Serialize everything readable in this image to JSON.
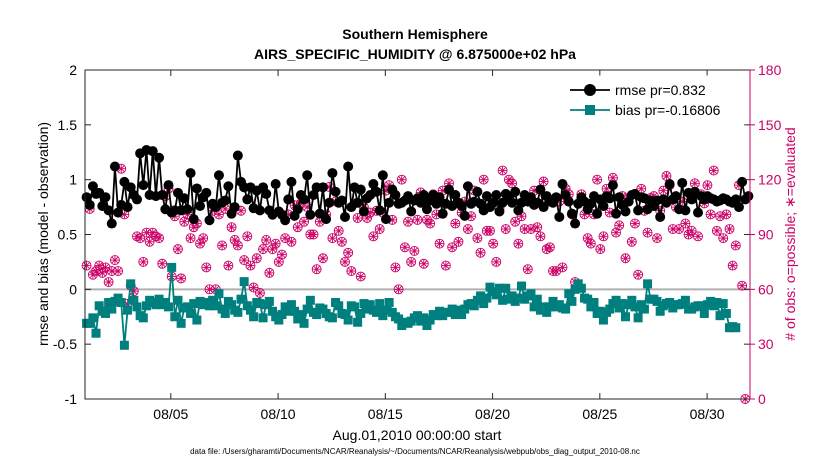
{
  "chart_data": {
    "type": "line",
    "title": "Southern Hemisphere",
    "subtitle": "AIRS_SPECIFIC_HUMIDITY @ 6.875000e+02 hPa",
    "xlabel": "Aug.01,2010 00:00:00 start",
    "ylabel": "rmse and bias (model - observation)",
    "ylabel_right": "# of obs: o=possible; ∗=evaluated",
    "x_ticks": [
      "08/05",
      "08/10",
      "08/15",
      "08/20",
      "08/25",
      "08/30"
    ],
    "x_tick_days": [
      5,
      10,
      15,
      20,
      25,
      30
    ],
    "xlim": [
      1,
      32
    ],
    "ylim": [
      -1,
      2
    ],
    "yticks": [
      -1,
      -0.5,
      0,
      0.5,
      1,
      1.5,
      2
    ],
    "ylim_right": [
      0,
      180
    ],
    "yticks_right": [
      0,
      30,
      60,
      90,
      120,
      150,
      180
    ],
    "grid": false,
    "legend_position": "top-right",
    "colors": {
      "rmse": "#000000",
      "bias": "#007f7f",
      "obs": "#cc0066",
      "zero_line": "#b0b0b0"
    },
    "series": [
      {
        "name": "rmse pr=0.832",
        "axis": "left",
        "values": [
          0.84,
          0.77,
          0.94,
          0.87,
          0.88,
          0.76,
          0.84,
          0.72,
          0.6,
          1.12,
          0.7,
          0.77,
          0.98,
          0.75,
          0.93,
          0.86,
          0.82,
          1.24,
          0.95,
          1.27,
          0.86,
          1.26,
          0.85,
          1.2,
          0.86,
          0.73,
          0.95,
          0.7,
          0.72,
          0.88,
          0.72,
          0.83,
          0.73,
          1.06,
          0.64,
          0.92,
          0.76,
          0.84,
          0.88,
          0.63,
          0.78,
          0.75,
          1.04,
          0.79,
          0.81,
          0.94,
          0.69,
          0.75,
          1.22,
          0.98,
          0.93,
          0.82,
          0.93,
          0.74,
          0.9,
          0.72,
          0.93,
          0.87,
          0.72,
          0.68,
          0.96,
          0.71,
          0.68,
          0.63,
          0.82,
          0.98,
          0.67,
          0.73,
          0.86,
          0.82,
          1.04,
          0.68,
          0.86,
          0.93,
          0.69,
          0.93,
          0.64,
          0.79,
          1.06,
          0.89,
          0.79,
          0.81,
          0.66,
          1.12,
          0.75,
          0.93,
          0.79,
          0.91,
          0.71,
          0.83,
          0.86,
          0.96,
          0.89,
          0.72,
          1.04,
          0.64,
          0.79,
          0.91,
          0.86,
          0.78,
          0.79,
          0.81,
          0.85,
          0.71,
          0.81,
          0.83,
          0.79,
          0.86,
          0.73,
          0.81,
          0.86,
          0.78,
          0.84,
          0.69,
          0.78,
          0.91,
          0.76,
          0.86,
          0.79,
          0.76,
          0.67,
          0.94,
          0.78,
          0.8,
          0.89,
          0.78,
          0.72,
          0.85,
          0.75,
          0.79,
          0.86,
          0.71,
          0.79,
          0.87,
          0.84,
          0.79,
          0.89,
          0.72,
          0.79,
          0.86,
          0.8,
          0.84,
          0.77,
          0.79,
          0.91,
          0.75,
          0.85,
          0.8,
          0.79,
          0.84,
          0.66,
          0.96,
          0.86,
          0.8,
          0.69,
          0.6,
          0.78,
          0.84,
          0.8,
          0.73,
          0.78,
          0.85,
          0.69,
          0.82,
          0.76,
          0.85,
          0.83,
          0.95,
          0.69,
          0.84,
          0.77,
          0.71,
          0.8,
          0.86,
          0.87,
          0.72,
          0.84,
          0.83,
          0.73,
          0.81,
          0.76,
          0.81,
          0.66,
          0.82,
          0.79,
          0.96,
          0.82,
          0.85,
          0.73,
          0.97,
          0.72,
          0.88,
          0.82,
          0.89,
          0.7,
          0.85,
          0.82,
          0.85,
          0.83,
          0.82,
          0.8,
          0.81,
          0.83,
          0.82,
          0.8,
          0.79,
          0.82,
          0.75,
          0.98,
          0.82,
          0.85
        ]
      },
      {
        "name": "bias pr=-0.16806",
        "axis": "left",
        "values": [
          -0.31,
          -0.31,
          -0.26,
          -0.4,
          -0.15,
          -0.2,
          -0.22,
          -0.12,
          -0.18,
          -0.11,
          -0.08,
          -0.12,
          -0.51,
          -0.19,
          0.05,
          -0.1,
          -0.16,
          -0.24,
          -0.26,
          -0.15,
          -0.1,
          -0.12,
          -0.14,
          -0.09,
          -0.14,
          -0.12,
          -0.16,
          0.2,
          -0.25,
          -0.1,
          -0.31,
          -0.17,
          -0.16,
          -0.22,
          -0.13,
          -0.28,
          -0.11,
          -0.14,
          -0.12,
          -0.15,
          -0.1,
          -0.15,
          -0.04,
          -0.18,
          -0.22,
          -0.11,
          -0.14,
          -0.19,
          -0.21,
          -0.09,
          0.07,
          -0.15,
          -0.19,
          -0.25,
          -0.12,
          -0.13,
          -0.26,
          -0.14,
          -0.11,
          -0.2,
          -0.25,
          -0.28,
          -0.23,
          -0.16,
          -0.2,
          -0.14,
          -0.2,
          -0.27,
          -0.23,
          -0.31,
          -0.18,
          -0.1,
          -0.21,
          -0.23,
          -0.17,
          -0.18,
          -0.22,
          -0.25,
          -0.26,
          -0.12,
          -0.15,
          -0.22,
          -0.23,
          -0.28,
          -0.15,
          -0.16,
          -0.3,
          -0.22,
          -0.13,
          -0.18,
          -0.14,
          -0.19,
          -0.21,
          -0.13,
          -0.24,
          -0.19,
          -0.12,
          -0.21,
          -0.25,
          -0.27,
          -0.33,
          -0.3,
          -0.31,
          -0.29,
          -0.26,
          -0.24,
          -0.29,
          -0.26,
          -0.33,
          -0.28,
          -0.23,
          -0.24,
          -0.2,
          -0.24,
          -0.21,
          -0.21,
          -0.18,
          -0.23,
          -0.19,
          -0.23,
          -0.18,
          -0.14,
          -0.13,
          -0.15,
          -0.1,
          -0.06,
          -0.13,
          -0.08,
          0.02,
          -0.02,
          -0.05,
          0.01,
          -0.1,
          0.01,
          -0.09,
          -0.06,
          -0.11,
          -0.08,
          0.03,
          -0.09,
          -0.06,
          -0.04,
          -0.16,
          -0.09,
          -0.19,
          -0.16,
          -0.21,
          -0.16,
          -0.11,
          -0.16,
          -0.14,
          -0.17,
          -0.18,
          -0.04,
          -0.11,
          0.0,
          0.05,
          0.01,
          -0.08,
          -0.09,
          -0.16,
          -0.12,
          -0.22,
          -0.2,
          -0.28,
          -0.21,
          -0.18,
          -0.13,
          -0.1,
          -0.17,
          -0.13,
          -0.25,
          -0.14,
          -0.1,
          -0.16,
          -0.26,
          -0.14,
          -0.18,
          0.05,
          -0.09,
          -0.09,
          -0.11,
          -0.2,
          -0.15,
          -0.13,
          -0.12,
          -0.17,
          -0.14,
          -0.14,
          -0.13,
          -0.1,
          -0.18,
          -0.18,
          -0.16,
          -0.15,
          -0.15,
          -0.22,
          -0.14,
          -0.11,
          -0.15,
          -0.12,
          -0.24,
          -0.13,
          -0.22,
          -0.35,
          -0.34,
          -0.35
        ]
      },
      {
        "name": "possible",
        "axis": "right",
        "marker": "o",
        "values": [
          73,
          104,
          68,
          70,
          73,
          69,
          72,
          64,
          70,
          76,
          70,
          126,
          101,
          52,
          62,
          59,
          89,
          88,
          75,
          91,
          86,
          91,
          89,
          88,
          74,
          111,
          115,
          67,
          100,
          82,
          66,
          97,
          101,
          88,
          94,
          96,
          85,
          88,
          72,
          60,
          103,
          60,
          101,
          84,
          104,
          73,
          94,
          87,
          84,
          103,
          76,
          89,
          73,
          61,
          77,
          58,
          82,
          87,
          69,
          82,
          85,
          75,
          79,
          88,
          101,
          86,
          106,
          94,
          107,
          97,
          105,
          90,
          90,
          71,
          97,
          77,
          101,
          116,
          88,
          108,
          92,
          86,
          75,
          80,
          70,
          107,
          99,
          67,
          105,
          99,
          102,
          89,
          103,
          93,
          102,
          114,
          117,
          98,
          72,
          60,
          120,
          83,
          97,
          75,
          81,
          98,
          113,
          74,
          98,
          96,
          112,
          101,
          85,
          114,
          73,
          118,
          83,
          96,
          86,
          102,
          108,
          93,
          100,
          114,
          88,
          80,
          120,
          92,
          92,
          85,
          75,
          104,
          125,
          93,
          120,
          118,
          97,
          85,
          100,
          93,
          71,
          93,
          114,
          94,
          89,
          119,
          82,
          83,
          70,
          70,
          108,
          72,
          115,
          112,
          101,
          64,
          107,
          112,
          101,
          88,
          85,
          101,
          120,
          82,
          89,
          115,
          102,
          121,
          91,
          95,
          111,
          77,
          110,
          86,
          96,
          68,
          115,
          103,
          91,
          110,
          111,
          88,
          103,
          114,
          122,
          117,
          93,
          105,
          93,
          108,
          96,
          90,
          92,
          118,
          89,
          112,
          107,
          117,
          101,
          125,
          92,
          100,
          88,
          101,
          93,
          73,
          84,
          117,
          62,
          0
        ]
      },
      {
        "name": "evaluated",
        "axis": "right",
        "marker": "*",
        "values": [
          73,
          104,
          68,
          70,
          73,
          69,
          72,
          64,
          70,
          76,
          70,
          126,
          101,
          52,
          62,
          59,
          89,
          88,
          75,
          91,
          86,
          91,
          89,
          88,
          74,
          111,
          115,
          67,
          100,
          82,
          66,
          97,
          101,
          88,
          94,
          96,
          85,
          88,
          72,
          60,
          103,
          60,
          101,
          84,
          104,
          73,
          94,
          87,
          84,
          103,
          76,
          89,
          73,
          61,
          77,
          58,
          82,
          87,
          69,
          82,
          85,
          75,
          79,
          88,
          101,
          86,
          106,
          94,
          107,
          97,
          105,
          90,
          90,
          71,
          97,
          77,
          101,
          116,
          88,
          108,
          92,
          86,
          75,
          80,
          70,
          107,
          99,
          67,
          105,
          99,
          102,
          89,
          103,
          93,
          102,
          114,
          117,
          98,
          72,
          60,
          120,
          83,
          97,
          75,
          81,
          98,
          113,
          74,
          98,
          96,
          112,
          101,
          85,
          114,
          73,
          118,
          83,
          96,
          86,
          102,
          108,
          93,
          100,
          114,
          88,
          80,
          120,
          92,
          92,
          85,
          75,
          104,
          125,
          93,
          120,
          118,
          97,
          85,
          100,
          93,
          71,
          93,
          114,
          94,
          89,
          119,
          82,
          83,
          70,
          70,
          108,
          72,
          115,
          112,
          101,
          64,
          107,
          112,
          101,
          88,
          85,
          101,
          120,
          82,
          89,
          115,
          102,
          121,
          91,
          95,
          111,
          77,
          110,
          86,
          96,
          68,
          115,
          103,
          91,
          110,
          111,
          88,
          103,
          114,
          122,
          117,
          93,
          105,
          93,
          108,
          96,
          90,
          92,
          118,
          89,
          112,
          107,
          117,
          101,
          125,
          92,
          100,
          88,
          101,
          93,
          73,
          84,
          117,
          62,
          0
        ]
      }
    ]
  },
  "footnote": "data file: /Users/gharamti/Documents/NCAR/Reanalysis/~/Documents/NCAR/Reanalysis/webpub/obs_diag_output_2010-08.nc"
}
